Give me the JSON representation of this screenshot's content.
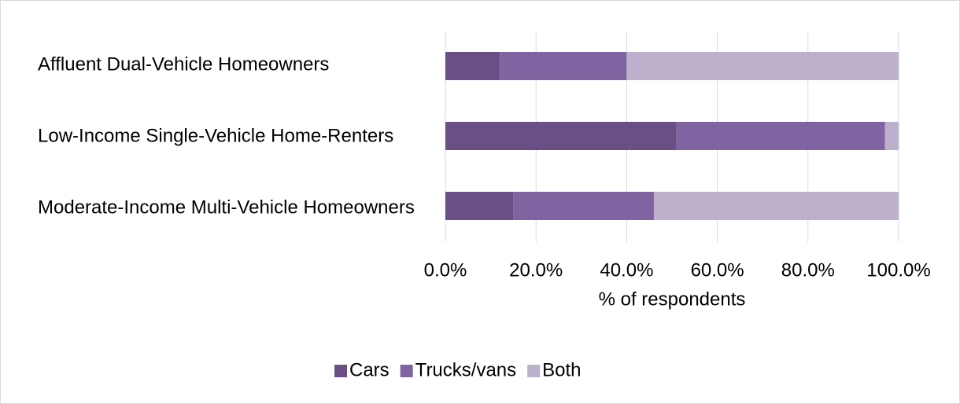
{
  "chart_data": {
    "type": "stacked_barh",
    "categories": [
      "Affluent Dual-Vehicle Homeowners",
      "Low-Income Single-Vehicle Home-Renters",
      "Moderate-Income Multi-Vehicle Homeowners"
    ],
    "series": [
      {
        "name": "Cars",
        "color": "#6a4f86",
        "values": [
          12,
          51,
          15
        ]
      },
      {
        "name": "Trucks/vans",
        "color": "#8064a2",
        "values": [
          28,
          46,
          31
        ]
      },
      {
        "name": "Both",
        "color": "#bcb0cc",
        "values": [
          60,
          3,
          54
        ]
      }
    ],
    "xlabel": "% of respondents",
    "xlim": [
      0,
      100
    ],
    "xticks": [
      {
        "value": 0,
        "label": "0.0%"
      },
      {
        "value": 20,
        "label": "20.0%"
      },
      {
        "value": 40,
        "label": "40.0%"
      },
      {
        "value": 60,
        "label": "60.0%"
      },
      {
        "value": 80,
        "label": "80.0%"
      },
      {
        "value": 100,
        "label": "100.0%"
      }
    ],
    "grid": true,
    "legend": "bottom"
  }
}
